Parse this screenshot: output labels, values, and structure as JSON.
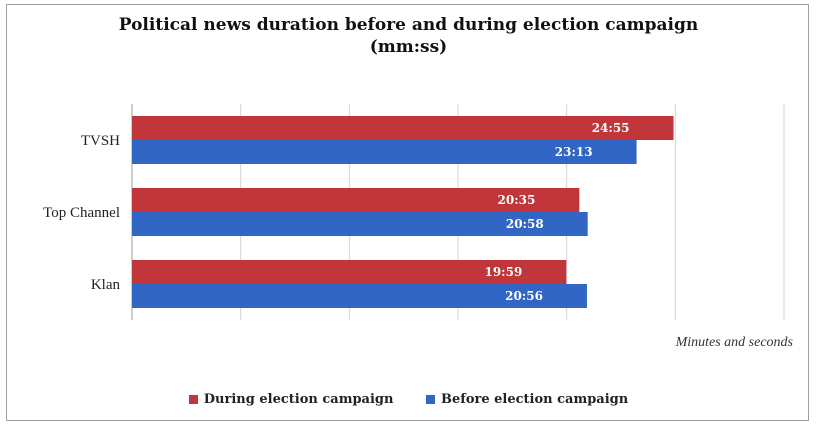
{
  "chart_data": {
    "type": "bar",
    "orientation": "horizontal",
    "title": "Political news duration before and during election campaign",
    "subtitle": "(mm:ss)",
    "categories": [
      "TVSH",
      "Top Channel",
      "Klan"
    ],
    "series": [
      {
        "name": "During election campaign",
        "color": "#c0363b",
        "values": [
          24.917,
          20.583,
          19.983
        ],
        "labels": [
          "24:55",
          "20:35",
          "19:59"
        ]
      },
      {
        "name": "Before election campaign",
        "color": "#3266c4",
        "values": [
          23.217,
          20.967,
          20.933
        ],
        "labels": [
          "23:13",
          "20:58",
          "20:56"
        ]
      }
    ],
    "xlabel": "Minutes and seconds",
    "xlim": [
      0,
      30
    ],
    "grid": true,
    "legend_position": "bottom"
  }
}
